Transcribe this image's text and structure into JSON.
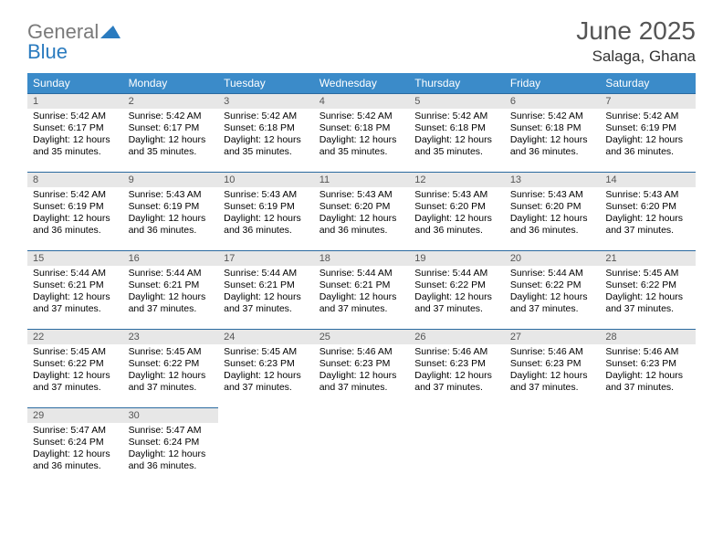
{
  "logo": {
    "word1": "General",
    "word2": "Blue"
  },
  "title": "June 2025",
  "location": "Salaga, Ghana",
  "colors": {
    "header_bg": "#3b8bc9",
    "header_text": "#ffffff",
    "daynum_bg": "#e7e7e7",
    "cell_border": "#2a6aa0",
    "logo_gray": "#7a7a7a",
    "logo_blue": "#2a7bbf",
    "title_color": "#555555"
  },
  "weekdays": [
    "Sunday",
    "Monday",
    "Tuesday",
    "Wednesday",
    "Thursday",
    "Friday",
    "Saturday"
  ],
  "layout": {
    "columns": 7,
    "rows": 5,
    "start_day_index": 0
  },
  "days": [
    {
      "n": 1,
      "sunrise": "5:42 AM",
      "sunset": "6:17 PM",
      "daylight": "12 hours and 35 minutes."
    },
    {
      "n": 2,
      "sunrise": "5:42 AM",
      "sunset": "6:17 PM",
      "daylight": "12 hours and 35 minutes."
    },
    {
      "n": 3,
      "sunrise": "5:42 AM",
      "sunset": "6:18 PM",
      "daylight": "12 hours and 35 minutes."
    },
    {
      "n": 4,
      "sunrise": "5:42 AM",
      "sunset": "6:18 PM",
      "daylight": "12 hours and 35 minutes."
    },
    {
      "n": 5,
      "sunrise": "5:42 AM",
      "sunset": "6:18 PM",
      "daylight": "12 hours and 35 minutes."
    },
    {
      "n": 6,
      "sunrise": "5:42 AM",
      "sunset": "6:18 PM",
      "daylight": "12 hours and 36 minutes."
    },
    {
      "n": 7,
      "sunrise": "5:42 AM",
      "sunset": "6:19 PM",
      "daylight": "12 hours and 36 minutes."
    },
    {
      "n": 8,
      "sunrise": "5:42 AM",
      "sunset": "6:19 PM",
      "daylight": "12 hours and 36 minutes."
    },
    {
      "n": 9,
      "sunrise": "5:43 AM",
      "sunset": "6:19 PM",
      "daylight": "12 hours and 36 minutes."
    },
    {
      "n": 10,
      "sunrise": "5:43 AM",
      "sunset": "6:19 PM",
      "daylight": "12 hours and 36 minutes."
    },
    {
      "n": 11,
      "sunrise": "5:43 AM",
      "sunset": "6:20 PM",
      "daylight": "12 hours and 36 minutes."
    },
    {
      "n": 12,
      "sunrise": "5:43 AM",
      "sunset": "6:20 PM",
      "daylight": "12 hours and 36 minutes."
    },
    {
      "n": 13,
      "sunrise": "5:43 AM",
      "sunset": "6:20 PM",
      "daylight": "12 hours and 36 minutes."
    },
    {
      "n": 14,
      "sunrise": "5:43 AM",
      "sunset": "6:20 PM",
      "daylight": "12 hours and 37 minutes."
    },
    {
      "n": 15,
      "sunrise": "5:44 AM",
      "sunset": "6:21 PM",
      "daylight": "12 hours and 37 minutes."
    },
    {
      "n": 16,
      "sunrise": "5:44 AM",
      "sunset": "6:21 PM",
      "daylight": "12 hours and 37 minutes."
    },
    {
      "n": 17,
      "sunrise": "5:44 AM",
      "sunset": "6:21 PM",
      "daylight": "12 hours and 37 minutes."
    },
    {
      "n": 18,
      "sunrise": "5:44 AM",
      "sunset": "6:21 PM",
      "daylight": "12 hours and 37 minutes."
    },
    {
      "n": 19,
      "sunrise": "5:44 AM",
      "sunset": "6:22 PM",
      "daylight": "12 hours and 37 minutes."
    },
    {
      "n": 20,
      "sunrise": "5:44 AM",
      "sunset": "6:22 PM",
      "daylight": "12 hours and 37 minutes."
    },
    {
      "n": 21,
      "sunrise": "5:45 AM",
      "sunset": "6:22 PM",
      "daylight": "12 hours and 37 minutes."
    },
    {
      "n": 22,
      "sunrise": "5:45 AM",
      "sunset": "6:22 PM",
      "daylight": "12 hours and 37 minutes."
    },
    {
      "n": 23,
      "sunrise": "5:45 AM",
      "sunset": "6:22 PM",
      "daylight": "12 hours and 37 minutes."
    },
    {
      "n": 24,
      "sunrise": "5:45 AM",
      "sunset": "6:23 PM",
      "daylight": "12 hours and 37 minutes."
    },
    {
      "n": 25,
      "sunrise": "5:46 AM",
      "sunset": "6:23 PM",
      "daylight": "12 hours and 37 minutes."
    },
    {
      "n": 26,
      "sunrise": "5:46 AM",
      "sunset": "6:23 PM",
      "daylight": "12 hours and 37 minutes."
    },
    {
      "n": 27,
      "sunrise": "5:46 AM",
      "sunset": "6:23 PM",
      "daylight": "12 hours and 37 minutes."
    },
    {
      "n": 28,
      "sunrise": "5:46 AM",
      "sunset": "6:23 PM",
      "daylight": "12 hours and 37 minutes."
    },
    {
      "n": 29,
      "sunrise": "5:47 AM",
      "sunset": "6:24 PM",
      "daylight": "12 hours and 36 minutes."
    },
    {
      "n": 30,
      "sunrise": "5:47 AM",
      "sunset": "6:24 PM",
      "daylight": "12 hours and 36 minutes."
    }
  ],
  "labels": {
    "sunrise": "Sunrise:",
    "sunset": "Sunset:",
    "daylight": "Daylight:"
  }
}
